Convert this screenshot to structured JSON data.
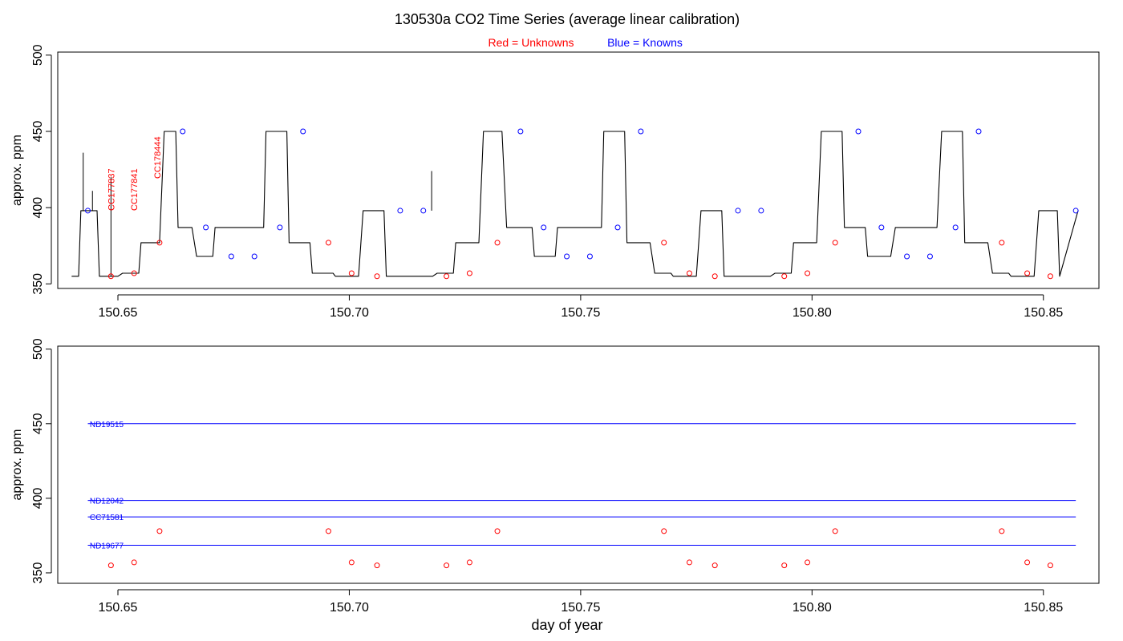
{
  "title": "130530a   CO2 Time Series (average linear calibration)",
  "legend": {
    "unknowns_label": "Red = Unknowns",
    "knowns_label": "Blue = Knowns"
  },
  "xlabel": "day of year",
  "colors": {
    "unknown": "#ff0000",
    "known": "#0000ff",
    "trace": "#000000",
    "axis": "#000000"
  },
  "chart_data": [
    {
      "type": "line",
      "panel": "top",
      "ylabel": "approx. ppm",
      "xlim": [
        150.637,
        150.862
      ],
      "ylim": [
        347,
        502
      ],
      "x_ticks": [
        "150.65",
        "150.70",
        "150.75",
        "150.80",
        "150.85"
      ],
      "y_ticks": [
        "350",
        "400",
        "450",
        "500"
      ],
      "trace": {
        "name": "",
        "x": [
          150.64,
          150.6415,
          150.642,
          150.644,
          150.6455,
          150.646,
          150.65,
          150.651,
          150.6545,
          150.655,
          150.659,
          150.66,
          150.6625,
          150.663,
          150.666,
          150.667,
          150.6705,
          150.671,
          150.6815,
          150.682,
          150.6865,
          150.687,
          150.6915,
          150.692,
          150.6965,
          150.697,
          150.702,
          150.703,
          150.7075,
          150.708,
          150.718,
          150.719,
          150.7225,
          150.723,
          150.728,
          150.729,
          150.733,
          150.734,
          150.7395,
          150.74,
          150.7445,
          150.745,
          150.7545,
          150.755,
          150.7595,
          150.76,
          150.765,
          150.766,
          150.7695,
          150.77,
          150.775,
          150.776,
          150.7805,
          150.781,
          150.791,
          150.792,
          150.7955,
          150.796,
          150.801,
          150.802,
          150.8065,
          150.807,
          150.8115,
          150.812,
          150.817,
          150.818,
          150.827,
          150.828,
          150.8325,
          150.833,
          150.838,
          150.839,
          150.8425,
          150.843,
          150.848,
          150.849,
          150.853,
          150.8535,
          150.8575
        ],
        "y": [
          355,
          355,
          398,
          398,
          398,
          355,
          355,
          357,
          357,
          377,
          377,
          450,
          450,
          387,
          387,
          368,
          368,
          387,
          387,
          450,
          450,
          377,
          377,
          357,
          357,
          355,
          355,
          398,
          398,
          355,
          355,
          357,
          357,
          377,
          377,
          450,
          450,
          387,
          387,
          368,
          368,
          387,
          387,
          450,
          450,
          377,
          377,
          357,
          357,
          355,
          355,
          398,
          398,
          355,
          355,
          357,
          357,
          377,
          377,
          450,
          450,
          387,
          387,
          368,
          368,
          387,
          387,
          450,
          450,
          377,
          377,
          357,
          357,
          355,
          355,
          398,
          398,
          355,
          398
        ]
      },
      "spikes": [
        {
          "x": 150.6425,
          "y_from": 398,
          "y_to": 436
        },
        {
          "x": 150.6445,
          "y_from": 398,
          "y_to": 411
        },
        {
          "x": 150.6485,
          "y_from": 355,
          "y_to": 420
        },
        {
          "x": 150.7178,
          "y_from": 398,
          "y_to": 424
        }
      ],
      "knowns": {
        "name": "Knowns",
        "x": [
          150.6435,
          150.664,
          150.669,
          150.6745,
          150.6795,
          150.685,
          150.69,
          150.711,
          150.716,
          150.737,
          150.742,
          150.747,
          150.752,
          150.758,
          150.763,
          150.784,
          150.789,
          150.81,
          150.815,
          150.8205,
          150.8255,
          150.831,
          150.836,
          150.857
        ],
        "y": [
          398,
          450,
          387,
          368,
          368,
          387,
          450,
          398,
          398,
          450,
          387,
          368,
          368,
          387,
          450,
          398,
          398,
          450,
          387,
          368,
          368,
          387,
          450,
          398
        ]
      },
      "unknowns": {
        "name": "Unknowns",
        "x": [
          150.6485,
          150.6535,
          150.659,
          150.6955,
          150.7005,
          150.706,
          150.721,
          150.726,
          150.732,
          150.768,
          150.7735,
          150.779,
          150.794,
          150.799,
          150.805,
          150.841,
          150.8465,
          150.8515
        ],
        "y": [
          355,
          357,
          377,
          377,
          357,
          355,
          355,
          357,
          377,
          377,
          357,
          355,
          355,
          357,
          377,
          377,
          357,
          355
        ]
      },
      "annotations": [
        {
          "text": "CC177837",
          "x": 150.6485,
          "y": 398
        },
        {
          "text": "CC177841",
          "x": 150.6535,
          "y": 398
        },
        {
          "text": "CC178444",
          "x": 150.6585,
          "y": 419
        }
      ]
    },
    {
      "type": "line",
      "panel": "bottom",
      "ylabel": "approx. ppm",
      "xlim": [
        150.637,
        150.862
      ],
      "ylim": [
        343,
        502
      ],
      "x_ticks": [
        "150.65",
        "150.70",
        "150.75",
        "150.80",
        "150.85"
      ],
      "y_ticks": [
        "350",
        "400",
        "450",
        "500"
      ],
      "standards": [
        {
          "name": "ND19515",
          "y": 450,
          "x_from": 150.6435,
          "x_to": 150.857
        },
        {
          "name": "ND12042",
          "y": 398.5,
          "x_from": 150.6435,
          "x_to": 150.857
        },
        {
          "name": "CC71581",
          "y": 387.5,
          "x_from": 150.6435,
          "x_to": 150.857
        },
        {
          "name": "ND19677",
          "y": 368.5,
          "x_from": 150.6435,
          "x_to": 150.857
        }
      ],
      "unknowns": {
        "name": "Unknowns",
        "x": [
          150.6485,
          150.6535,
          150.659,
          150.6955,
          150.7005,
          150.706,
          150.721,
          150.726,
          150.732,
          150.768,
          150.7735,
          150.779,
          150.794,
          150.799,
          150.805,
          150.841,
          150.8465,
          150.8515
        ],
        "y": [
          355,
          357,
          378,
          378,
          357,
          355,
          355,
          357,
          378,
          378,
          357,
          355,
          355,
          357,
          378,
          378,
          357,
          355
        ]
      }
    }
  ]
}
